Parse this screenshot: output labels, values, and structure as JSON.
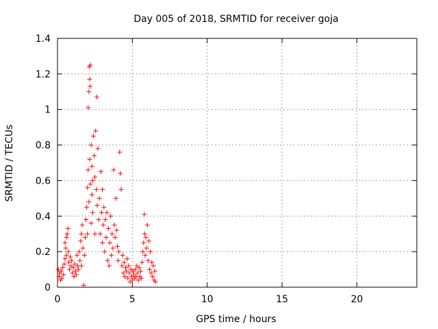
{
  "chart_data": {
    "type": "scatter",
    "title": "Day 005 of 2018, SRMTID for receiver goja",
    "xlabel": "GPS time / hours",
    "ylabel": "SRMTID / TECUs",
    "xlim": [
      0,
      24
    ],
    "ylim": [
      0,
      1.4
    ],
    "xticks": [
      0,
      5,
      10,
      15,
      20
    ],
    "yticks": [
      0,
      0.2,
      0.4,
      0.6,
      0.8,
      1,
      1.2,
      1.4
    ],
    "xtick_labels": [
      "0",
      "5",
      "10",
      "15",
      "20"
    ],
    "ytick_labels": [
      "0",
      "0.2",
      "0.4",
      "0.6",
      "0.8",
      "1",
      "1.2",
      "1.4"
    ],
    "grid": true,
    "marker": "+",
    "color": "#ff0000",
    "series": [
      {
        "name": "SRMTID",
        "points": [
          [
            0.05,
            0.1
          ],
          [
            0.1,
            0.06
          ],
          [
            0.15,
            0.08
          ],
          [
            0.2,
            0.04
          ],
          [
            0.25,
            0.09
          ],
          [
            0.3,
            0.05
          ],
          [
            0.35,
            0.11
          ],
          [
            0.4,
            0.07
          ],
          [
            0.45,
            0.13
          ],
          [
            0.5,
            0.16
          ],
          [
            0.5,
            0.25
          ],
          [
            0.55,
            0.22
          ],
          [
            0.6,
            0.18
          ],
          [
            0.6,
            0.28
          ],
          [
            0.65,
            0.3
          ],
          [
            0.7,
            0.33
          ],
          [
            0.72,
            0.2
          ],
          [
            0.75,
            0.14
          ],
          [
            0.8,
            0.1
          ],
          [
            0.85,
            0.17
          ],
          [
            0.9,
            0.12
          ],
          [
            0.95,
            0.15
          ],
          [
            1.0,
            0.08
          ],
          [
            1.05,
            0.11
          ],
          [
            1.1,
            0.06
          ],
          [
            1.15,
            0.13
          ],
          [
            1.2,
            0.09
          ],
          [
            1.25,
            0.07
          ],
          [
            1.3,
            0.18
          ],
          [
            1.35,
            0.12
          ],
          [
            1.4,
            0.1
          ],
          [
            1.45,
            0.2
          ],
          [
            1.5,
            0.15
          ],
          [
            1.55,
            0.26
          ],
          [
            1.6,
            0.3
          ],
          [
            1.6,
            0.12
          ],
          [
            1.65,
            0.35
          ],
          [
            1.7,
            0.22
          ],
          [
            1.75,
            0.01
          ],
          [
            1.8,
            0.18
          ],
          [
            1.85,
            0.28
          ],
          [
            1.9,
            0.38
          ],
          [
            1.95,
            0.45
          ],
          [
            2.0,
            0.56
          ],
          [
            2.0,
            0.3
          ],
          [
            2.05,
            0.66
          ],
          [
            2.05,
            1.01
          ],
          [
            2.1,
            1.1
          ],
          [
            2.1,
            0.48
          ],
          [
            2.12,
            1.24
          ],
          [
            2.15,
            1.17
          ],
          [
            2.15,
            0.72
          ],
          [
            2.18,
            1.13
          ],
          [
            2.2,
            1.25
          ],
          [
            2.2,
            0.58
          ],
          [
            2.25,
            0.8
          ],
          [
            2.25,
            0.36
          ],
          [
            2.3,
            0.68
          ],
          [
            2.3,
            0.52
          ],
          [
            2.35,
            0.6
          ],
          [
            2.35,
            0.42
          ],
          [
            2.4,
            0.85
          ],
          [
            2.45,
            0.74
          ],
          [
            2.5,
            0.62
          ],
          [
            2.5,
            0.3
          ],
          [
            2.55,
            0.88
          ],
          [
            2.6,
            0.55
          ],
          [
            2.62,
            1.07
          ],
          [
            2.65,
            0.46
          ],
          [
            2.7,
            0.78
          ],
          [
            2.75,
            0.38
          ],
          [
            2.8,
            0.5
          ],
          [
            2.85,
            0.3
          ],
          [
            2.9,
            0.65
          ],
          [
            2.95,
            0.42
          ],
          [
            3.0,
            0.25
          ],
          [
            3.0,
            0.55
          ],
          [
            3.05,
            0.35
          ],
          [
            3.1,
            0.45
          ],
          [
            3.15,
            0.2
          ],
          [
            3.2,
            0.38
          ],
          [
            3.25,
            0.28
          ],
          [
            3.3,
            0.42
          ],
          [
            3.35,
            0.15
          ],
          [
            3.4,
            0.33
          ],
          [
            3.45,
            0.12
          ],
          [
            3.5,
            0.25
          ],
          [
            3.55,
            0.4
          ],
          [
            3.6,
            0.18
          ],
          [
            3.65,
            0.3
          ],
          [
            3.7,
            0.22
          ],
          [
            3.75,
            0.66
          ],
          [
            3.8,
            0.35
          ],
          [
            3.85,
            0.28
          ],
          [
            3.9,
            0.5
          ],
          [
            3.95,
            0.32
          ],
          [
            4.0,
            0.23
          ],
          [
            4.05,
            0.15
          ],
          [
            4.1,
            0.2
          ],
          [
            4.15,
            0.76
          ],
          [
            4.2,
            0.64
          ],
          [
            4.25,
            0.55
          ],
          [
            4.3,
            0.12
          ],
          [
            4.35,
            0.18
          ],
          [
            4.4,
            0.08
          ],
          [
            4.45,
            0.14
          ],
          [
            4.5,
            0.06
          ],
          [
            4.55,
            0.11
          ],
          [
            4.6,
            0.09
          ],
          [
            4.65,
            0.16
          ],
          [
            4.7,
            0.05
          ],
          [
            4.75,
            0.12
          ],
          [
            4.8,
            0.08
          ],
          [
            4.85,
            0.03
          ],
          [
            4.9,
            0.1
          ],
          [
            4.95,
            0.06
          ],
          [
            5.0,
            0.04
          ],
          [
            5.05,
            0.09
          ],
          [
            5.1,
            0.07
          ],
          [
            5.15,
            0.05
          ],
          [
            5.2,
            0.1
          ],
          [
            5.25,
            0.06
          ],
          [
            5.3,
            0.12
          ],
          [
            5.35,
            0.08
          ],
          [
            5.4,
            0.04
          ],
          [
            5.45,
            0.11
          ],
          [
            5.5,
            0.06
          ],
          [
            5.55,
            0.09
          ],
          [
            5.6,
            0.05
          ],
          [
            5.65,
            0.14
          ],
          [
            5.7,
            0.2
          ],
          [
            5.75,
            0.25
          ],
          [
            5.8,
            0.41
          ],
          [
            5.82,
            0.3
          ],
          [
            5.85,
            0.18
          ],
          [
            5.9,
            0.28
          ],
          [
            5.95,
            0.22
          ],
          [
            6.0,
            0.35
          ],
          [
            6.05,
            0.15
          ],
          [
            6.1,
            0.26
          ],
          [
            6.15,
            0.1
          ],
          [
            6.2,
            0.2
          ],
          [
            6.25,
            0.08
          ],
          [
            6.3,
            0.14
          ],
          [
            6.35,
            0.06
          ],
          [
            6.4,
            0.12
          ],
          [
            6.45,
            0.04
          ],
          [
            6.5,
            0.09
          ],
          [
            6.55,
            0.03
          ]
        ]
      }
    ]
  }
}
